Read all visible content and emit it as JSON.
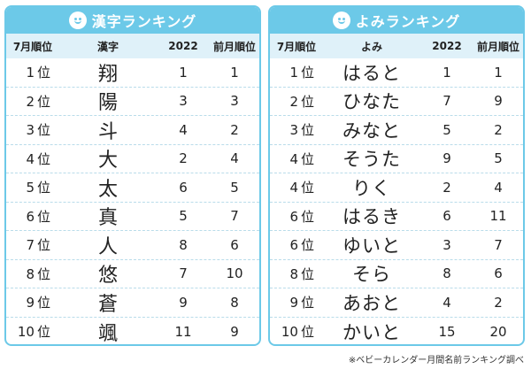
{
  "kanji_panel": {
    "title": "漢字ランキング",
    "headers": {
      "rank": "7月順位",
      "name": "漢字",
      "year": "2022",
      "prev": "前月順位"
    },
    "rows": [
      {
        "num": "1",
        "unit": "位",
        "name": "翔",
        "year": "1",
        "prev": "1"
      },
      {
        "num": "2",
        "unit": "位",
        "name": "陽",
        "year": "3",
        "prev": "3"
      },
      {
        "num": "3",
        "unit": "位",
        "name": "斗",
        "year": "4",
        "prev": "2"
      },
      {
        "num": "4",
        "unit": "位",
        "name": "大",
        "year": "2",
        "prev": "4"
      },
      {
        "num": "5",
        "unit": "位",
        "name": "太",
        "year": "6",
        "prev": "5"
      },
      {
        "num": "6",
        "unit": "位",
        "name": "真",
        "year": "5",
        "prev": "7"
      },
      {
        "num": "7",
        "unit": "位",
        "name": "人",
        "year": "8",
        "prev": "6"
      },
      {
        "num": "8",
        "unit": "位",
        "name": "悠",
        "year": "7",
        "prev": "10"
      },
      {
        "num": "9",
        "unit": "位",
        "name": "蒼",
        "year": "9",
        "prev": "8"
      },
      {
        "num": "10",
        "unit": "位",
        "name": "颯",
        "year": "11",
        "prev": "9"
      }
    ]
  },
  "yomi_panel": {
    "title": "よみランキング",
    "headers": {
      "rank": "7月順位",
      "name": "よみ",
      "year": "2022",
      "prev": "前月順位"
    },
    "rows": [
      {
        "num": "1",
        "unit": "位",
        "name": "はると",
        "year": "1",
        "prev": "1"
      },
      {
        "num": "2",
        "unit": "位",
        "name": "ひなた",
        "year": "7",
        "prev": "9"
      },
      {
        "num": "3",
        "unit": "位",
        "name": "みなと",
        "year": "5",
        "prev": "2"
      },
      {
        "num": "4",
        "unit": "位",
        "name": "そうた",
        "year": "9",
        "prev": "5"
      },
      {
        "num": "4",
        "unit": "位",
        "name": "りく",
        "year": "2",
        "prev": "4"
      },
      {
        "num": "6",
        "unit": "位",
        "name": "はるき",
        "year": "6",
        "prev": "11"
      },
      {
        "num": "6",
        "unit": "位",
        "name": "ゆいと",
        "year": "3",
        "prev": "7"
      },
      {
        "num": "8",
        "unit": "位",
        "name": "そら",
        "year": "8",
        "prev": "6"
      },
      {
        "num": "9",
        "unit": "位",
        "name": "あおと",
        "year": "4",
        "prev": "2"
      },
      {
        "num": "10",
        "unit": "位",
        "name": "かいと",
        "year": "15",
        "prev": "20"
      }
    ]
  },
  "footnote": "※ベビーカレンダー月間名前ランキング調べ",
  "colors": {
    "accent": "#6cc9e8",
    "header_bg": "#dff1f9"
  },
  "icons": {
    "panel_icon": "smiley-face-icon"
  }
}
